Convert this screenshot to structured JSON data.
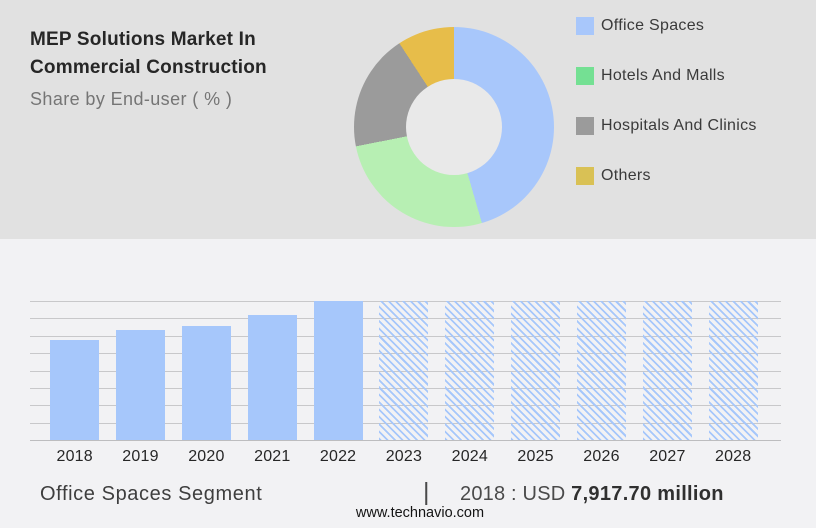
{
  "header": {
    "title_line1": "MEP Solutions Market In",
    "title_line2": "Commercial Construction",
    "subtitle": "Share by End-user ( % )"
  },
  "donut": {
    "hole_color": "#e9e9e9",
    "segments": [
      {
        "label": "Office Spaces",
        "percent": 45.5,
        "color": "#a8c7fb",
        "legend_color": "#a8c7fb"
      },
      {
        "label": "Hotels And Malls",
        "percent": 26.4,
        "color": "#b7efb3",
        "legend_color": "#74e093"
      },
      {
        "label": "Hospitals And Clinics",
        "percent": 18.9,
        "color": "#9b9b9b",
        "legend_color": "#9b9b9b"
      },
      {
        "label": "Others",
        "percent": 9.2,
        "color": "#e7bd4a",
        "legend_color": "#d9c155"
      }
    ]
  },
  "chart_data": [
    {
      "type": "pie",
      "title": "Share by End-user ( % )",
      "labels": [
        "Office Spaces",
        "Hotels And Malls",
        "Hospitals And Clinics",
        "Others"
      ],
      "values_percent": [
        45.5,
        26.4,
        18.9,
        9.2
      ],
      "legend_position": "right",
      "style": "donut"
    },
    {
      "type": "bar",
      "title": "Office Spaces Segment market size by year",
      "categories": [
        "2018",
        "2019",
        "2020",
        "2021",
        "2022",
        "2023",
        "2024",
        "2025",
        "2026",
        "2027",
        "2028"
      ],
      "values_relative": [
        0.72,
        0.79,
        0.82,
        0.9,
        1.0,
        1.0,
        1.0,
        1.0,
        1.0,
        1.0,
        1.0
      ],
      "solid_years": [
        "2018",
        "2019",
        "2020",
        "2021",
        "2022"
      ],
      "hatched_years": [
        "2023",
        "2024",
        "2025",
        "2026",
        "2027",
        "2028"
      ],
      "known_values": {
        "2018": "USD 7,917.70 million"
      },
      "bar_color": "#a6c7fb",
      "grid": true,
      "gridline_count": 9,
      "ylabel": "",
      "xlabel": ""
    }
  ],
  "footer": {
    "segment_label": "Office Spaces Segment",
    "separator": "|",
    "value_prefix": "2018 : USD ",
    "value_bold": "7,917.70 million",
    "website": "www.technavio.com"
  },
  "colors": {
    "top_background": "#e1e1e1",
    "bottom_background": "#f2f2f4",
    "gridline": "#c8c8ca",
    "title_text": "#262626",
    "subtitle_text": "#757575"
  }
}
